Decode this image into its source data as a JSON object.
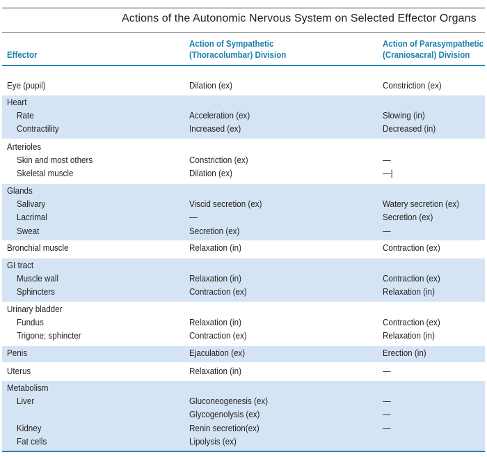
{
  "title": "Actions of the Autonomic Nervous System on Selected Effector Organs",
  "columns": {
    "effector": "Effector",
    "sympathetic": [
      "Action of Sympathetic",
      "(Thoracolumbar) Division"
    ],
    "parasympathetic": [
      "Action of Parasympathetic",
      "(Craniosacral) Division"
    ]
  },
  "colors": {
    "header_text": "#1c7fb0",
    "rule": "#2a86b8",
    "shade": "#d4e4f4"
  },
  "groups": [
    {
      "shaded": false,
      "rows": [
        {
          "effector": "Eye (pupil)",
          "sub": false,
          "sympathetic": "Dilation (ex)",
          "parasympathetic": "Constriction (ex)"
        }
      ]
    },
    {
      "shaded": true,
      "rows": [
        {
          "effector": "Heart",
          "sub": false,
          "sympathetic": "",
          "parasympathetic": ""
        },
        {
          "effector": "Rate",
          "sub": true,
          "sympathetic": "Acceleration (ex)",
          "parasympathetic": "Slowing (in)"
        },
        {
          "effector": "Contractility",
          "sub": true,
          "sympathetic": "Increased (ex)",
          "parasympathetic": "Decreased (in)"
        }
      ]
    },
    {
      "shaded": false,
      "rows": [
        {
          "effector": "Arterioles",
          "sub": false,
          "sympathetic": "",
          "parasympathetic": ""
        },
        {
          "effector": "Skin and most others",
          "sub": true,
          "sympathetic": "Constriction (ex)",
          "parasympathetic": "—"
        },
        {
          "effector": "Skeletal muscle",
          "sub": true,
          "sympathetic": "Dilation (ex)",
          "parasympathetic": "—|"
        }
      ]
    },
    {
      "shaded": true,
      "rows": [
        {
          "effector": "Glands",
          "sub": false,
          "sympathetic": "",
          "parasympathetic": ""
        },
        {
          "effector": "Salivary",
          "sub": true,
          "sympathetic": "Viscid secretion (ex)",
          "parasympathetic": "Watery secretion (ex)"
        },
        {
          "effector": "Lacrimal",
          "sub": true,
          "sympathetic": "—",
          "parasympathetic": "Secretion (ex)"
        },
        {
          "effector": "Sweat",
          "sub": true,
          "sympathetic": "Secretion (ex)",
          "parasympathetic": "—"
        }
      ]
    },
    {
      "shaded": false,
      "rows": [
        {
          "effector": "Bronchial muscle",
          "sub": false,
          "sympathetic": "Relaxation (in)",
          "parasympathetic": "Contraction (ex)"
        }
      ]
    },
    {
      "shaded": true,
      "rows": [
        {
          "effector": "GI tract",
          "sub": false,
          "sympathetic": "",
          "parasympathetic": ""
        },
        {
          "effector": "Muscle wall",
          "sub": true,
          "sympathetic": "Relaxation (in)",
          "parasympathetic": "Contraction (ex)"
        },
        {
          "effector": "Sphincters",
          "sub": true,
          "sympathetic": "Contraction (ex)",
          "parasympathetic": "Relaxation (in)"
        }
      ]
    },
    {
      "shaded": false,
      "rows": [
        {
          "effector": "Urinary bladder",
          "sub": false,
          "sympathetic": "",
          "parasympathetic": ""
        },
        {
          "effector": "Fundus",
          "sub": true,
          "sympathetic": "Relaxation (in)",
          "parasympathetic": "Contraction (ex)"
        },
        {
          "effector": "Trigone; sphincter",
          "sub": true,
          "sympathetic": "Contraction (ex)",
          "parasympathetic": "Relaxation (in)"
        }
      ]
    },
    {
      "shaded": true,
      "rows": [
        {
          "effector": "Penis",
          "sub": false,
          "sympathetic": "Ejaculation (ex)",
          "parasympathetic": "Erection (in)"
        }
      ]
    },
    {
      "shaded": false,
      "rows": [
        {
          "effector": "Uterus",
          "sub": false,
          "sympathetic": "Relaxation (in)",
          "parasympathetic": "—"
        }
      ]
    },
    {
      "shaded": true,
      "rows": [
        {
          "effector": "Metabolism",
          "sub": false,
          "sympathetic": "",
          "parasympathetic": ""
        },
        {
          "effector": "Liver",
          "sub": true,
          "sympathetic": "Gluconeogenesis (ex)",
          "parasympathetic": "—"
        },
        {
          "effector": "",
          "sub": false,
          "sympathetic": "Glycogenolysis (ex)",
          "parasympathetic": "—"
        },
        {
          "effector": "Kidney",
          "sub": true,
          "sympathetic": "Renin secretion(ex)",
          "parasympathetic": "—"
        },
        {
          "effector": "Fat cells",
          "sub": true,
          "sympathetic": "Lipolysis (ex)",
          "parasympathetic": ""
        }
      ]
    }
  ]
}
